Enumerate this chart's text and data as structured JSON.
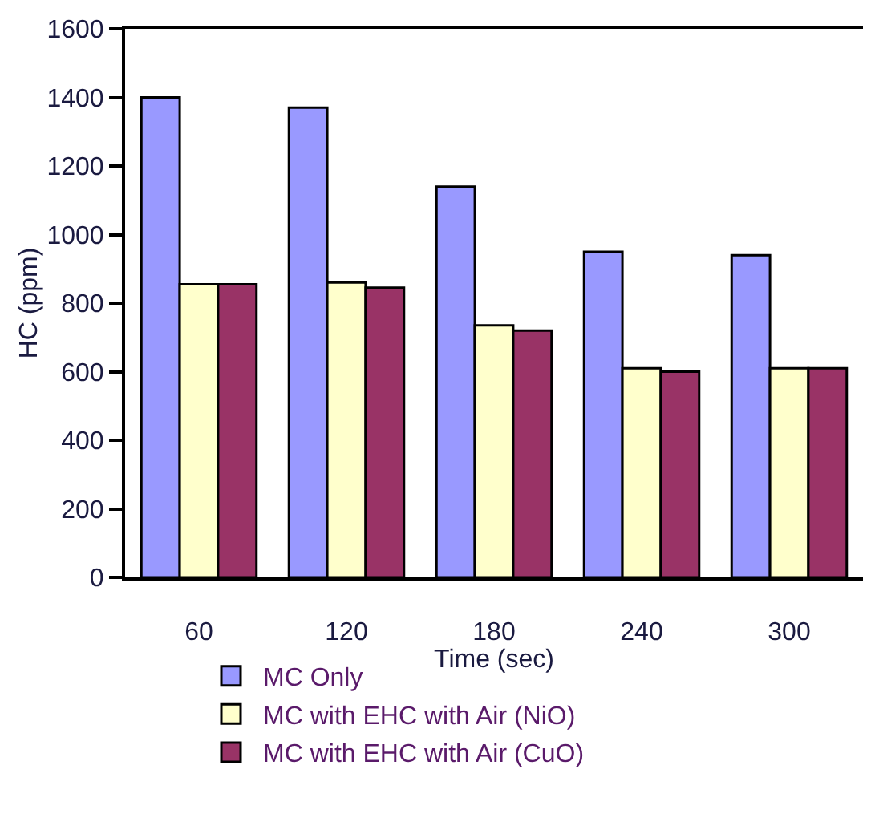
{
  "chart_data": {
    "type": "bar",
    "xlabel": "Time (sec)",
    "ylabel": "HC (ppm)",
    "categories": [
      "60",
      "120",
      "180",
      "240",
      "300"
    ],
    "series": [
      {
        "name": "MC Only",
        "color": "#9999ff",
        "values": [
          1400,
          1370,
          1140,
          950,
          940
        ]
      },
      {
        "name": "MC with EHC with Air (NiO)",
        "color": "#ffffcc",
        "values": [
          855,
          860,
          735,
          610,
          610
        ]
      },
      {
        "name": "MC with EHC with Air (CuO)",
        "color": "#993366",
        "values": [
          855,
          845,
          720,
          600,
          610
        ]
      }
    ],
    "ylim": [
      0,
      1600
    ],
    "yticks": [
      0,
      200,
      400,
      600,
      800,
      1000,
      1200,
      1400,
      1600
    ],
    "grid": false,
    "legend": "bottom"
  }
}
